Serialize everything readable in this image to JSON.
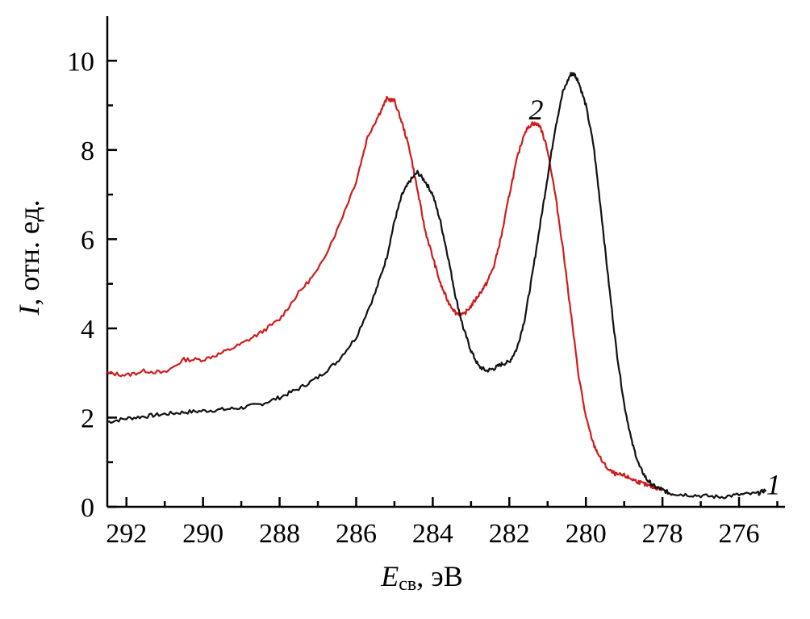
{
  "chart_data": {
    "type": "line",
    "xlabel": {
      "main": "E",
      "sub": "св",
      "unit": ", эВ"
    },
    "ylabel": {
      "main": "I",
      "rest": ", отн. ед."
    },
    "xlim": [
      292.5,
      274.8
    ],
    "ylim": [
      0,
      11
    ],
    "x_reversed": true,
    "grid": false,
    "legend": "none",
    "xticks": [
      292,
      290,
      288,
      286,
      284,
      282,
      280,
      278,
      276
    ],
    "yticks": [
      0,
      2,
      4,
      6,
      8,
      10
    ],
    "series": [
      {
        "name": "1",
        "color": "#111111",
        "x": [
          292.5,
          292.0,
          291.5,
          291.0,
          290.5,
          290.0,
          289.5,
          289.0,
          288.5,
          288.0,
          287.5,
          287.0,
          286.5,
          286.0,
          285.5,
          285.2,
          285.0,
          284.8,
          284.6,
          284.4,
          284.2,
          284.0,
          283.8,
          283.6,
          283.4,
          283.2,
          283.0,
          282.8,
          282.6,
          282.4,
          282.2,
          282.0,
          281.8,
          281.6,
          281.4,
          281.2,
          281.0,
          280.8,
          280.6,
          280.4,
          280.3,
          280.2,
          280.0,
          279.8,
          279.6,
          279.4,
          279.2,
          279.0,
          278.8,
          278.6,
          278.4,
          278.2,
          278.0,
          277.8,
          277.5,
          277.0,
          276.5,
          276.0,
          275.5,
          275.3
        ],
        "y": [
          1.9,
          1.98,
          2.03,
          2.08,
          2.12,
          2.15,
          2.18,
          2.22,
          2.3,
          2.45,
          2.65,
          2.9,
          3.25,
          3.8,
          4.8,
          5.6,
          6.4,
          7.0,
          7.3,
          7.5,
          7.3,
          7.0,
          6.4,
          5.6,
          4.7,
          4.0,
          3.5,
          3.15,
          3.05,
          3.1,
          3.2,
          3.25,
          3.55,
          4.2,
          5.2,
          6.3,
          7.4,
          8.5,
          9.3,
          9.7,
          9.7,
          9.55,
          9.0,
          8.1,
          6.6,
          5.0,
          3.5,
          2.3,
          1.45,
          0.9,
          0.6,
          0.45,
          0.38,
          0.3,
          0.28,
          0.25,
          0.22,
          0.27,
          0.3,
          0.38
        ]
      },
      {
        "name": "2",
        "color": "#d01c1c",
        "x": [
          292.5,
          292.0,
          291.5,
          291.0,
          290.5,
          290.0,
          289.5,
          289.0,
          288.5,
          288.0,
          287.5,
          287.0,
          286.5,
          286.0,
          285.7,
          285.4,
          285.2,
          285.0,
          284.8,
          284.6,
          284.4,
          284.2,
          284.0,
          283.8,
          283.6,
          283.4,
          283.2,
          283.0,
          282.8,
          282.6,
          282.4,
          282.2,
          282.0,
          281.8,
          281.6,
          281.4,
          281.2,
          281.0,
          280.8,
          280.6,
          280.4,
          280.2,
          280.0,
          279.8,
          279.6,
          279.4,
          279.2,
          279.0,
          278.8,
          278.6,
          278.4,
          278.2,
          278.0
        ],
        "y": [
          3.0,
          2.95,
          3.05,
          3.0,
          3.3,
          3.3,
          3.45,
          3.65,
          3.9,
          4.2,
          4.8,
          5.3,
          6.2,
          7.3,
          8.3,
          8.8,
          9.15,
          9.1,
          8.6,
          8.0,
          7.1,
          6.2,
          5.6,
          5.0,
          4.6,
          4.35,
          4.3,
          4.5,
          4.75,
          5.0,
          5.4,
          6.1,
          7.0,
          7.8,
          8.4,
          8.6,
          8.55,
          8.0,
          7.0,
          5.8,
          4.4,
          3.0,
          2.0,
          1.4,
          1.05,
          0.82,
          0.72,
          0.7,
          0.62,
          0.55,
          0.48,
          0.43,
          0.4
        ]
      }
    ],
    "curve_labels": [
      {
        "text": "1",
        "x": 275.1,
        "y": 0.5
      },
      {
        "text": "2",
        "x": 281.3,
        "y": 8.9
      }
    ]
  }
}
